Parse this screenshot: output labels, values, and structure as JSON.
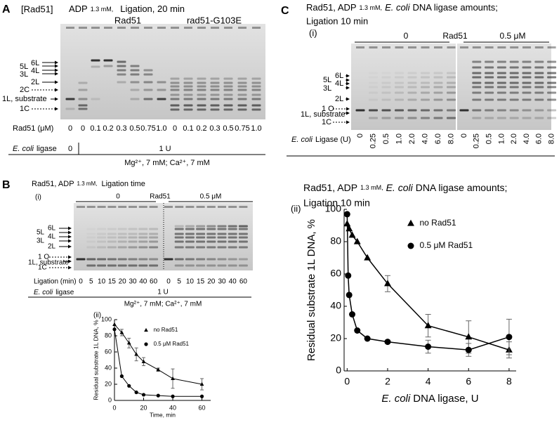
{
  "panel_a": {
    "letter": "A",
    "tag": "[Rad51]",
    "adp": "ADP",
    "adp_conc": "1.3 mM,",
    "time": "Ligation, 20 min",
    "groups": [
      "Rad51",
      "rad51-G103E"
    ],
    "band_labels": [
      "6L",
      "5L",
      "4L",
      "3L",
      "2L",
      "2C",
      "1L, substrate",
      "1C"
    ],
    "rad51_label": "Rad51 (μM)",
    "rad51_values": [
      "0",
      "0",
      "0.1",
      "0.2",
      "0.3",
      "0.5",
      "0.75",
      "1.0",
      "0",
      "0.1",
      "0.2",
      "0.3",
      "0.5",
      "0.75",
      "1.0"
    ],
    "ligase_label": [
      "E. coli",
      "ligase"
    ],
    "ligase_values": [
      "0",
      "1 U"
    ],
    "conditions": "Mg²⁺, 7 mM; Ca²⁺, 7 mM"
  },
  "panel_b": {
    "letter": "B",
    "header": [
      "Rad51, ADP",
      "1.3 mM,",
      "Ligation time"
    ],
    "sub": "(i)",
    "groups": [
      "0",
      "Rad51",
      "0.5 μM"
    ],
    "band_labels": [
      "6L",
      "5L",
      "4L",
      "3L",
      "2L",
      "1 O",
      "1L, substrate",
      "1C"
    ],
    "time_label": "Ligation (min)",
    "time_values": [
      "0",
      "5",
      "10",
      "15",
      "20",
      "30",
      "40",
      "60",
      "0",
      "5",
      "10",
      "15",
      "20",
      "30",
      "40",
      "60"
    ],
    "ligase_label": [
      "E. coli",
      "ligase"
    ],
    "ligase_value": "1 U",
    "conditions": "Mg²⁺, 7 mM; Ca²⁺, 7 mM"
  },
  "panel_c": {
    "letter": "C",
    "header": [
      "Rad51, ADP",
      "1.3 mM,",
      "E. coli",
      "DNA ligase amounts;",
      "Ligation 10 min"
    ],
    "sub": "(i)",
    "groups": [
      "0",
      "Rad51",
      "0.5 μM"
    ],
    "band_labels": [
      "6L",
      "5L",
      "4L",
      "3L",
      "2L",
      "1 O",
      "1L, substrate",
      "1C"
    ],
    "ligase_label": [
      "E. coli",
      "Ligase (U)"
    ],
    "ligase_values": [
      "0",
      "0.25",
      "0.5",
      "1.0",
      "2.0",
      "4.0",
      "6.0",
      "8.0",
      "0",
      "0.25",
      "0.5",
      "1.0",
      "2.0",
      "4.0",
      "6.0",
      "8.0"
    ]
  },
  "chart_data": [
    {
      "type": "line",
      "label": "(ii)",
      "y_label": "Residual substrate 1L DNA, %",
      "x_label": "Time, min",
      "xlim": [
        0,
        66
      ],
      "ylim": [
        0,
        100
      ],
      "xticks": [
        0,
        20,
        40,
        60
      ],
      "yticks": [
        0,
        20,
        40,
        60,
        80,
        100
      ],
      "legend": "upper right",
      "series": [
        {
          "name": "no Rad51",
          "color": "#000000",
          "marker": "triangle",
          "x": [
            0,
            5,
            10,
            15,
            20,
            30,
            40,
            60
          ],
          "values": [
            94,
            84,
            71,
            57,
            48,
            38,
            27,
            20
          ],
          "errors": [
            null,
            4,
            6,
            8,
            5,
            2,
            12,
            7
          ]
        },
        {
          "name": "0.5 μM Rad51",
          "color": "#000000",
          "marker": "circle",
          "x": [
            0,
            5,
            10,
            15,
            20,
            30,
            40,
            60
          ],
          "values": [
            88,
            30,
            18,
            10,
            7,
            6,
            5,
            5
          ]
        }
      ]
    },
    {
      "type": "line",
      "label": "(ii)",
      "title": [
        "Rad51, ADP",
        "1.3 mM,",
        "E. coli",
        "DNA ligase amounts;",
        "Ligation 10 min"
      ],
      "y_label": "Residual substrate 1L DNA, %",
      "x_label": [
        "E. coli",
        "DNA ligase,  U"
      ],
      "xlim": [
        -0.15,
        8.35
      ],
      "ylim": [
        0,
        100
      ],
      "xticks": [
        0,
        2,
        4,
        6,
        8
      ],
      "yticks": [
        0,
        20,
        40,
        60,
        80,
        100
      ],
      "legend": "upper center",
      "series": [
        {
          "name": "no Rad51",
          "color": "#000000",
          "marker": "triangle",
          "x": [
            0,
            0.1,
            0.25,
            0.5,
            1,
            2,
            4,
            6,
            8
          ],
          "values": [
            91,
            88,
            84,
            80,
            70,
            54,
            28,
            21,
            13
          ],
          "errors": [
            null,
            null,
            null,
            null,
            null,
            5,
            7,
            10,
            5
          ]
        },
        {
          "name": "0.5 μM Rad51",
          "color": "#000000",
          "marker": "circle",
          "x": [
            0,
            0.05,
            0.1,
            0.25,
            0.5,
            1,
            2,
            4,
            6,
            8
          ],
          "values": [
            97,
            59,
            47,
            35,
            25,
            20,
            18,
            15,
            13,
            21
          ],
          "errors": [
            null,
            null,
            null,
            null,
            null,
            null,
            null,
            4,
            4,
            11
          ]
        }
      ]
    }
  ]
}
